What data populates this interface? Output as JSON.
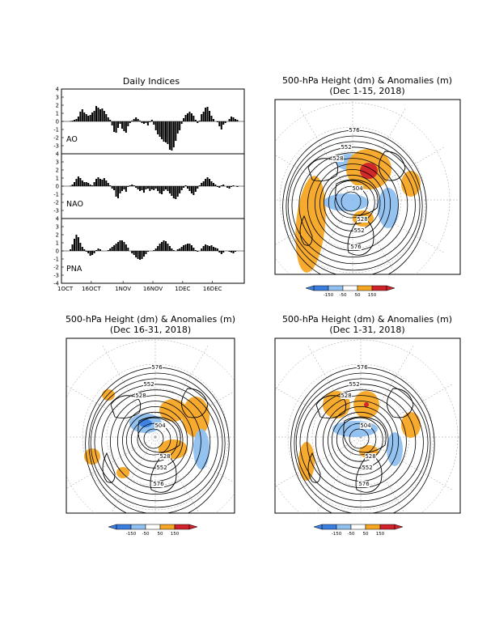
{
  "chart_data": [
    {
      "type": "bar",
      "title": "Daily Indices",
      "x_tick_labels": [
        "1OCT",
        "16OCT",
        "1NOV",
        "16NOV",
        "1DEC",
        "16DEC"
      ],
      "x_tick_days": [
        0,
        15,
        31,
        46,
        61,
        76
      ],
      "y_tick_labels": [
        "4",
        "3",
        "2",
        "1",
        "0",
        "-1",
        "-2",
        "-3",
        "-4"
      ],
      "ylim": [
        -4,
        4
      ],
      "panels": [
        {
          "name": "AO",
          "values": [
            0,
            0,
            0,
            0,
            0.05,
            0.1,
            0.2,
            0.3,
            0.6,
            1.2,
            1.5,
            1.1,
            0.9,
            0.7,
            0.8,
            1.1,
            1.3,
            1.9,
            1.7,
            1.5,
            1.6,
            1.3,
            0.9,
            0.5,
            0.2,
            -0.5,
            -1.3,
            -1.4,
            -0.8,
            -0.3,
            -0.9,
            -1.2,
            -1.4,
            -0.6,
            -0.2,
            0.1,
            0.3,
            0.5,
            0.3,
            0.1,
            -0.2,
            -0.3,
            -0.2,
            -0.5,
            -0.1,
            0.2,
            -0.4,
            -1.1,
            -1.6,
            -1.9,
            -2.2,
            -2.5,
            -2.6,
            -2.8,
            -3.5,
            -3.6,
            -3.2,
            -2.4,
            -1.5,
            -1.1,
            -0.3,
            0.4,
            0.8,
            1.0,
            1.2,
            1.0,
            0.7,
            0.2,
            -0.2,
            0.1,
            0.9,
            1.2,
            1.7,
            1.8,
            1.3,
            0.7,
            0.3,
            0.0,
            -0.1,
            -0.6,
            -1.0,
            -0.4,
            -0.2,
            0.0,
            0.3,
            0.6,
            0.5,
            0.3,
            0.2
          ]
        },
        {
          "name": "NAO",
          "values": [
            0,
            0,
            0,
            0,
            0.05,
            0.2,
            0.5,
            0.9,
            1.2,
            1.0,
            0.7,
            0.5,
            0.5,
            0.4,
            0.2,
            0.1,
            0.5,
            0.9,
            1.1,
            0.9,
            0.8,
            1.0,
            0.7,
            0.4,
            0.1,
            -0.3,
            -0.5,
            -1.3,
            -1.5,
            -0.9,
            -0.6,
            -0.4,
            -0.7,
            -0.1,
            0.1,
            0.2,
            0.1,
            -0.2,
            -0.4,
            -0.6,
            -0.5,
            -0.8,
            -0.4,
            -0.3,
            -0.6,
            -0.4,
            -0.5,
            -0.3,
            -0.6,
            -0.9,
            -1.0,
            -0.6,
            -0.4,
            -0.6,
            -0.9,
            -1.2,
            -1.5,
            -1.6,
            -1.3,
            -0.9,
            -0.5,
            -0.2,
            0.1,
            -0.3,
            -0.6,
            -0.9,
            -1.1,
            -0.7,
            -0.3,
            0.1,
            0.4,
            0.6,
            0.9,
            1.1,
            0.9,
            0.6,
            0.4,
            0.2,
            -0.1,
            -0.2,
            0.1,
            0.2,
            0.0,
            -0.2,
            -0.3,
            -0.1,
            0.1,
            0.0,
            -0.1
          ]
        },
        {
          "name": "PNA",
          "values": [
            0,
            0,
            0,
            0,
            0.2,
            0.8,
            1.5,
            2.0,
            1.7,
            1.0,
            0.5,
            0.2,
            -0.1,
            -0.3,
            -0.6,
            -0.5,
            -0.3,
            0.1,
            0.3,
            0.2,
            0.0,
            0.0,
            0.0,
            0.1,
            0.3,
            0.5,
            0.7,
            0.9,
            1.1,
            1.3,
            1.3,
            1.1,
            0.8,
            0.4,
            0.0,
            -0.3,
            -0.5,
            -0.8,
            -1.0,
            -1.1,
            -1.0,
            -0.7,
            -0.4,
            -0.1,
            0.0,
            0.0,
            0.1,
            0.3,
            0.6,
            0.9,
            1.1,
            1.3,
            1.2,
            0.9,
            0.6,
            0.3,
            0.1,
            0.0,
            0.2,
            0.3,
            0.5,
            0.7,
            0.8,
            0.9,
            0.9,
            0.7,
            0.4,
            0.1,
            -0.1,
            0.0,
            0.3,
            0.6,
            0.8,
            0.7,
            0.6,
            0.7,
            0.5,
            0.4,
            0.3,
            -0.2,
            -0.4,
            -0.2,
            0.0,
            0.0,
            -0.1,
            -0.2,
            -0.3,
            -0.1,
            0.0
          ]
        }
      ]
    },
    {
      "type": "heatmap",
      "subtype": "polar-stereographic contour map",
      "title": "500-hPa Height (dm) & Anomalies (m)",
      "subtitle": "(Dec 1-15, 2018)",
      "contour_labels": [
        "576",
        "552",
        "528",
        "504",
        "528",
        "552",
        "576"
      ],
      "anomaly_colorbar": {
        "ticks": [
          "-150",
          "-50",
          "50",
          "150"
        ],
        "colors": [
          "#3a7fe0",
          "#8fc0f0",
          "#ffffff",
          "#f5a623",
          "#d0222a"
        ]
      }
    },
    {
      "type": "heatmap",
      "subtype": "polar-stereographic contour map",
      "title": "500-hPa Height (dm) & Anomalies (m)",
      "subtitle": "(Dec 16-31, 2018)",
      "contour_labels": [
        "576",
        "552",
        "528",
        "504",
        "528",
        "552",
        "576"
      ],
      "anomaly_colorbar": {
        "ticks": [
          "-150",
          "-50",
          "50",
          "150"
        ],
        "colors": [
          "#3a7fe0",
          "#8fc0f0",
          "#ffffff",
          "#f5a623",
          "#d0222a"
        ]
      }
    },
    {
      "type": "heatmap",
      "subtype": "polar-stereographic contour map",
      "title": "500-hPa Height (dm) & Anomalies (m)",
      "subtitle": "(Dec 1-31, 2018)",
      "contour_labels": [
        "576",
        "552",
        "528",
        "504",
        "528",
        "552",
        "576"
      ],
      "anomaly_colorbar": {
        "ticks": [
          "-150",
          "-50",
          "50",
          "150"
        ],
        "colors": [
          "#3a7fe0",
          "#8fc0f0",
          "#ffffff",
          "#f5a623",
          "#d0222a"
        ]
      }
    }
  ]
}
